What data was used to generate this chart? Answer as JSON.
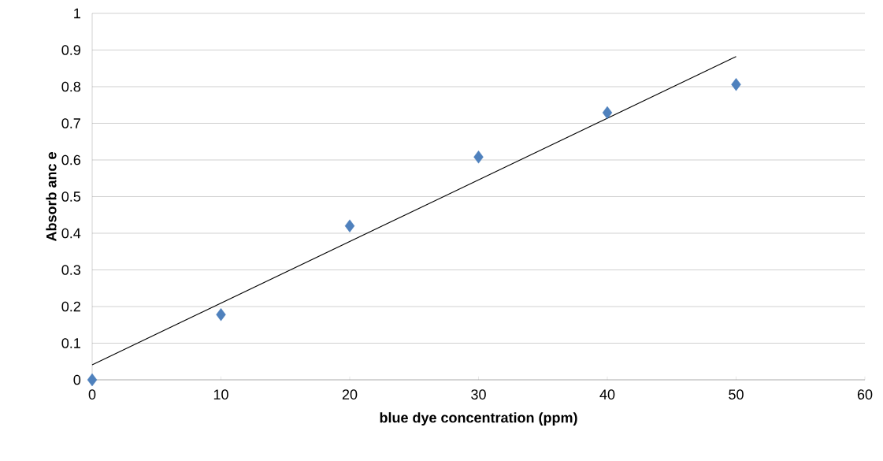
{
  "chart_data": {
    "type": "scatter",
    "xlabel": "blue dye concentration  (ppm)",
    "ylabel": "Absorb anc e",
    "xlim": [
      0,
      60
    ],
    "ylim": [
      0,
      1
    ],
    "xticks": [
      0,
      10,
      20,
      30,
      40,
      50,
      60
    ],
    "yticks": [
      0,
      0.1,
      0.2,
      0.3,
      0.4,
      0.5,
      0.6,
      0.7,
      0.8,
      0.9,
      1
    ],
    "grid": "y",
    "series": [
      {
        "marker": "diamond",
        "color": "#4f81bd",
        "x": [
          0,
          10,
          20,
          30,
          40,
          50
        ],
        "values": [
          0,
          0.178,
          0.42,
          0.608,
          0.729,
          0.806
        ]
      },
      {
        "type": "line",
        "marker": "none",
        "color": "#000000",
        "x": [
          0,
          50
        ],
        "values": [
          0.041,
          0.882
        ]
      }
    ]
  }
}
